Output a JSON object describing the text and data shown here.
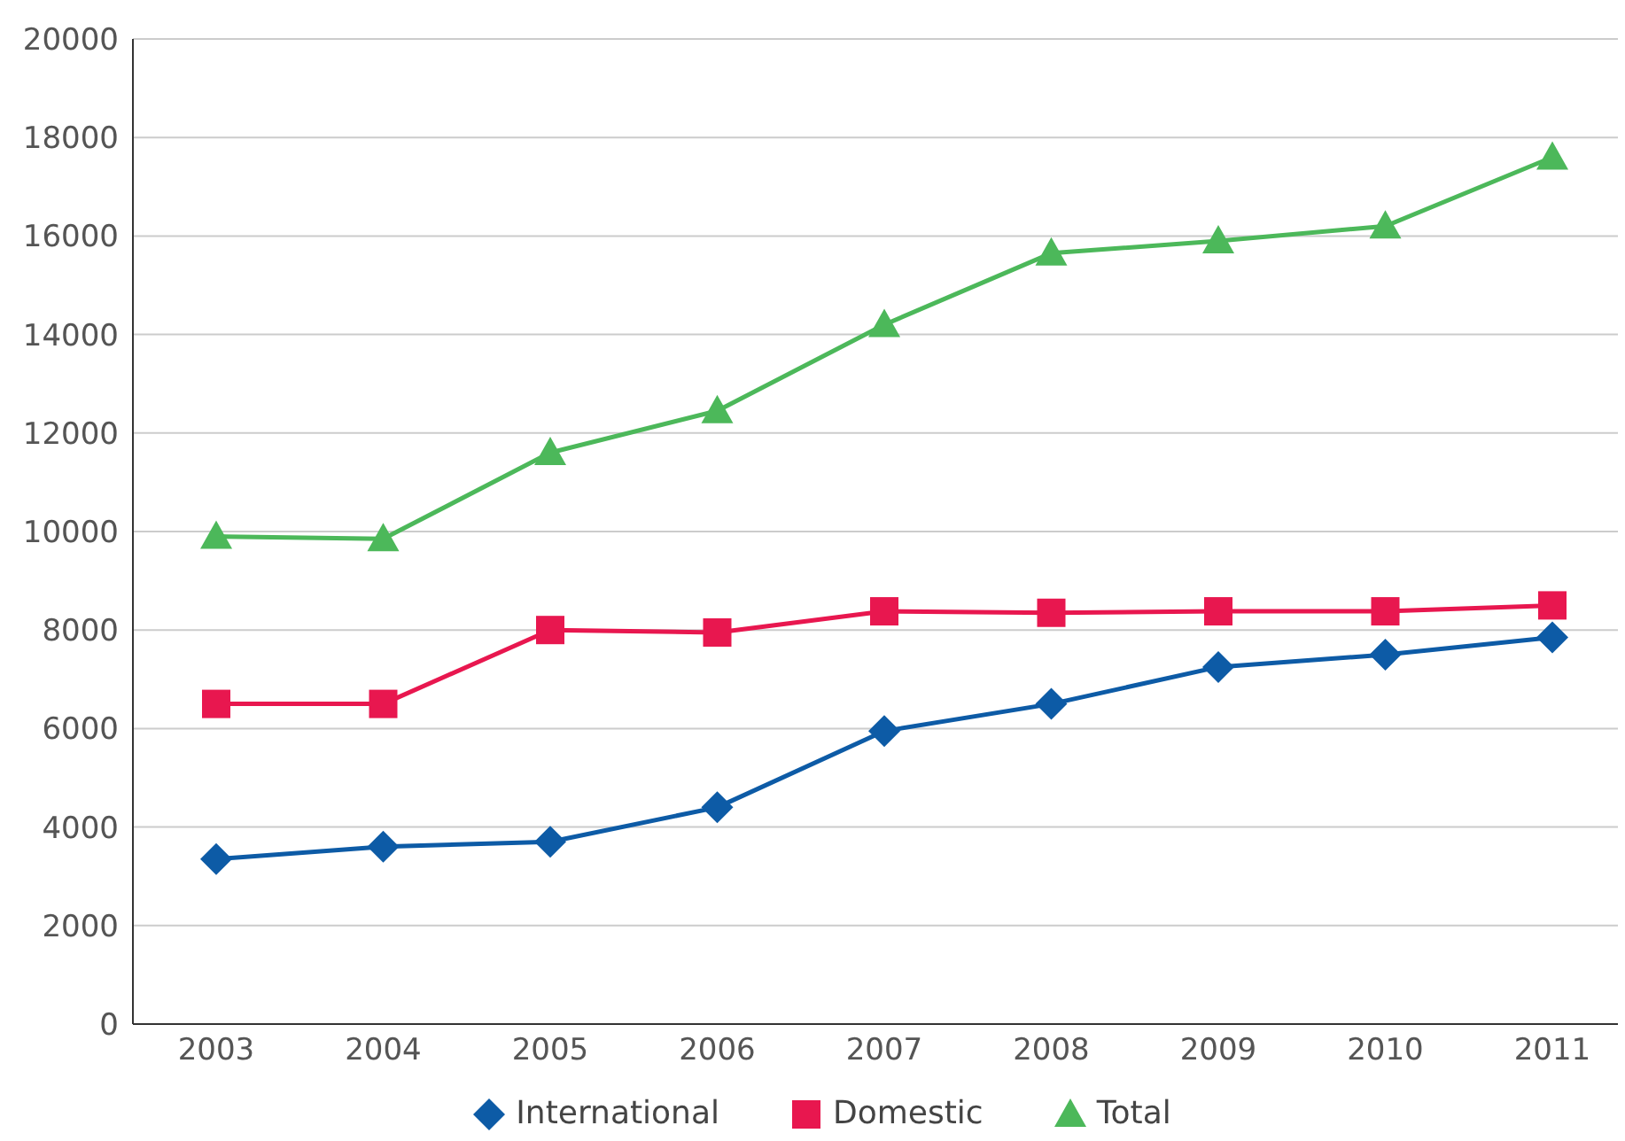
{
  "chart_data": {
    "type": "line",
    "categories": [
      "2003",
      "2004",
      "2005",
      "2006",
      "2007",
      "2008",
      "2009",
      "2010",
      "2011"
    ],
    "series": [
      {
        "name": "International",
        "color": "#0d5ba6",
        "marker": "diamond",
        "values": [
          3350,
          3600,
          3700,
          4400,
          5950,
          6500,
          7250,
          7500,
          7850
        ]
      },
      {
        "name": "Domestic",
        "color": "#e8174f",
        "marker": "square",
        "values": [
          6500,
          6500,
          8000,
          7950,
          8380,
          8350,
          8380,
          8380,
          8500
        ]
      },
      {
        "name": "Total",
        "color": "#4cb85a",
        "marker": "triangle",
        "values": [
          9900,
          9850,
          11600,
          12450,
          14200,
          15650,
          15900,
          16200,
          17600
        ]
      }
    ],
    "ylim": [
      0,
      20000
    ],
    "yticks": [
      0,
      2000,
      4000,
      6000,
      8000,
      10000,
      12000,
      14000,
      16000,
      18000,
      20000
    ],
    "grid": "y",
    "legend": "bottom",
    "line_style": "solid"
  }
}
